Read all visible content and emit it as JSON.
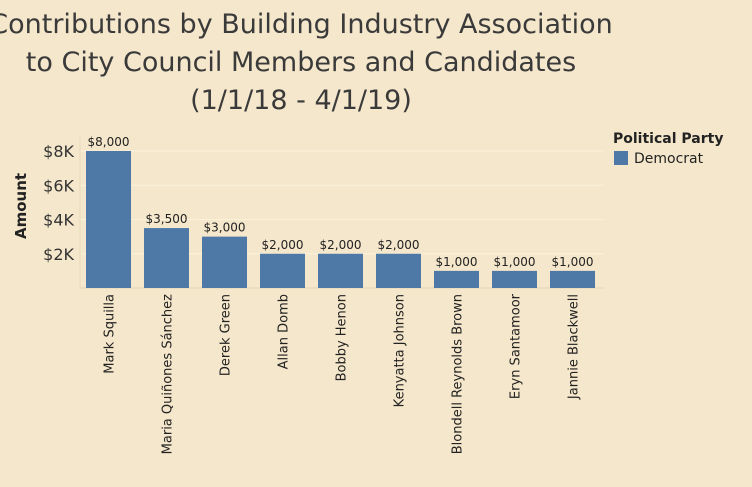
{
  "title_lines": [
    "Contributions by Building Industry Association",
    "to City Council Members and Candidates",
    "(1/1/18 - 4/1/19)"
  ],
  "legend": {
    "title": "Political Party",
    "items": [
      {
        "label": "Democrat",
        "color": "#4e79a7"
      }
    ]
  },
  "chart_data": {
    "type": "bar",
    "title": "Contributions by Building Industry Association to City Council Members and Candidates (1/1/18 - 4/1/19)",
    "xlabel": "",
    "ylabel": "Amount",
    "categories": [
      "Mark Squilla",
      "Maria Quiñones Sánchez",
      "Derek Green",
      "Allan Domb",
      "Bobby Henon",
      "Kenyatta Johnson",
      "Blondell Reynolds Brown",
      "Eryn Santamoor",
      "Jannie Blackwell"
    ],
    "series": [
      {
        "name": "Democrat",
        "values": [
          8000,
          3500,
          3000,
          2000,
          2000,
          2000,
          1000,
          1000,
          1000
        ]
      }
    ],
    "data_labels": [
      "$8,000",
      "$3,500",
      "$3,000",
      "$2,000",
      "$2,000",
      "$2,000",
      "$1,000",
      "$1,000",
      "$1,000"
    ],
    "y_ticks": [
      2000,
      4000,
      6000,
      8000
    ],
    "y_tick_labels": [
      "$2K",
      "$4K",
      "$6K",
      "$8K"
    ],
    "ylim": [
      0,
      8400
    ],
    "grid": true,
    "legend_position": "top-right",
    "bar_color": "#4e79a7",
    "grid_color": "#fbf2dc",
    "background_color": "#f5e7cb"
  }
}
